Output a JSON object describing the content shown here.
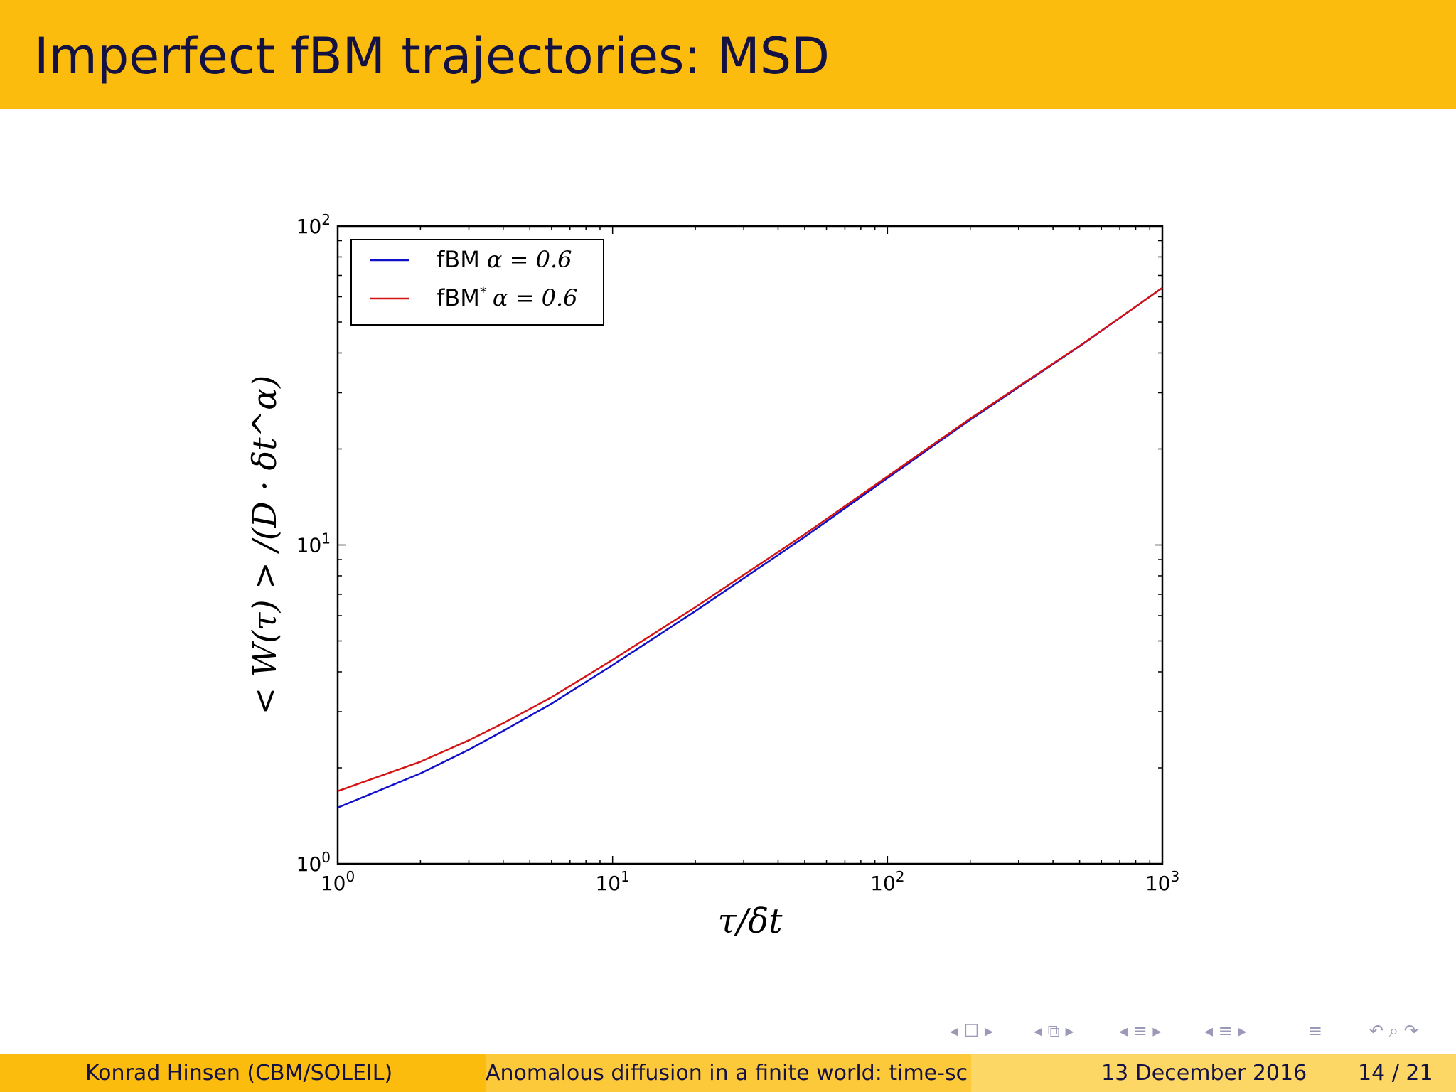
{
  "slide": {
    "title": "Imperfect fBM trajectories: MSD",
    "colors": {
      "title_bar": "#fbbc0d",
      "title_text": "#141143"
    }
  },
  "chart_data": {
    "type": "line",
    "x_scale": "log",
    "y_scale": "log",
    "xlim": [
      1,
      1000
    ],
    "ylim": [
      1,
      100
    ],
    "xlabel": "τ/δt",
    "ylabel": "< W(τ) > /(D · δt^α)",
    "xticks": [
      {
        "value": 1,
        "base": "10",
        "exp": "0"
      },
      {
        "value": 10,
        "base": "10",
        "exp": "1"
      },
      {
        "value": 100,
        "base": "10",
        "exp": "2"
      },
      {
        "value": 1000,
        "base": "10",
        "exp": "3"
      }
    ],
    "yticks": [
      {
        "value": 1,
        "base": "10",
        "exp": "0"
      },
      {
        "value": 10,
        "base": "10",
        "exp": "1"
      },
      {
        "value": 100,
        "base": "10",
        "exp": "2"
      }
    ],
    "legend_position": "top-left",
    "series": [
      {
        "name": "fBM",
        "label_math": "α = 0.6",
        "color": "#1010c8",
        "x": [
          1,
          2,
          3,
          4,
          6,
          10,
          20,
          50,
          100,
          200,
          500,
          1000
        ],
        "y": [
          1.5,
          1.92,
          2.28,
          2.61,
          3.18,
          4.2,
          6.2,
          10.6,
          16.2,
          24.7,
          42.0,
          64.0
        ]
      },
      {
        "name": "fBM*",
        "label_math": "α = 0.6",
        "color": "#d41414",
        "x": [
          1,
          2,
          3,
          4,
          6,
          10,
          20,
          50,
          100,
          200,
          500,
          1000
        ],
        "y": [
          1.69,
          2.09,
          2.44,
          2.76,
          3.33,
          4.36,
          6.38,
          10.8,
          16.4,
          24.9,
          42.1,
          64.0
        ]
      }
    ]
  },
  "navigation": {
    "icons": [
      "nav-left-arrow",
      "nav-frame",
      "nav-right-arrow",
      "nav-subsection",
      "nav-section",
      "nav-doc",
      "nav-search",
      "nav-back"
    ]
  },
  "footer": {
    "author": "Konrad Hinsen  (CBM/SOLEIL)",
    "talk_title": "Anomalous diffusion in a finite world: time-sc",
    "date": "13 December 2016",
    "page": "14 / 21",
    "colors": {
      "left": "#fbbc0d",
      "middle": "#fcc93a",
      "right": "#fdd766"
    }
  }
}
